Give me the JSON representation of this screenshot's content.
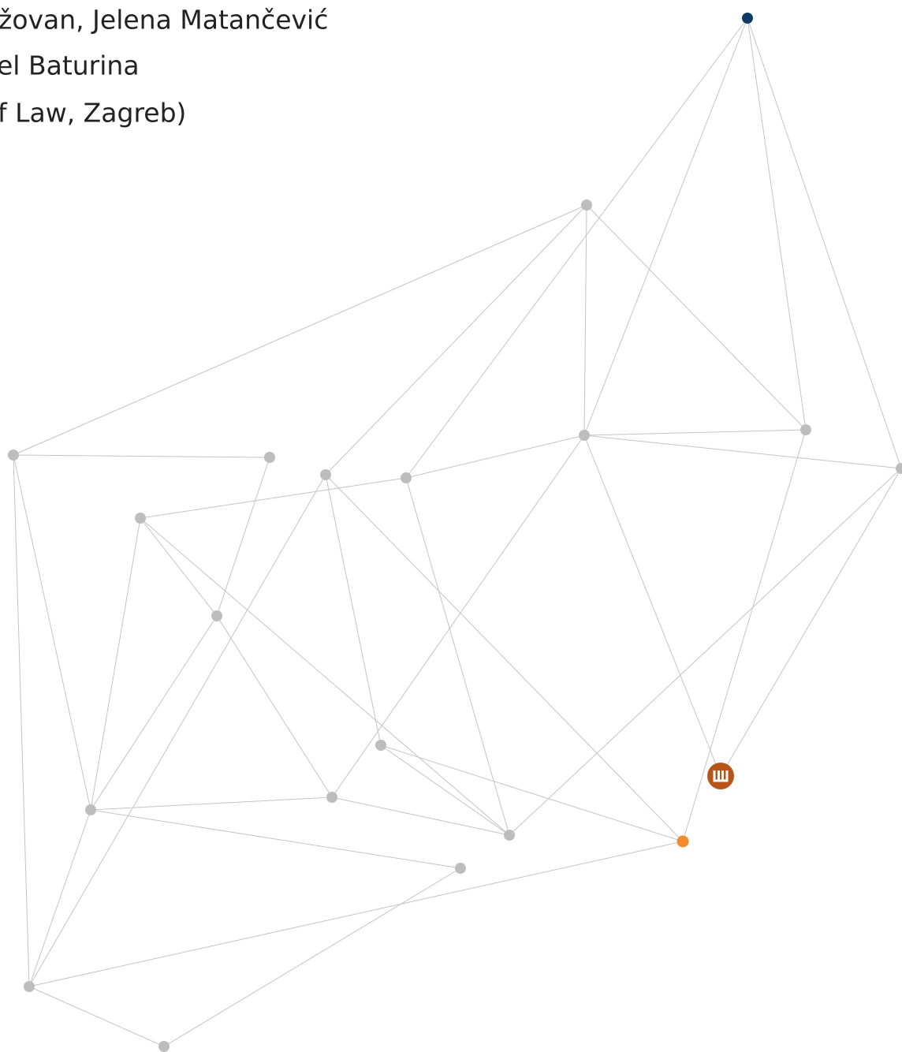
{
  "header": {
    "lines": [
      "žovan, Jelena Matančević",
      "el Baturina",
      "f Law, Zagreb)"
    ]
  }
}
